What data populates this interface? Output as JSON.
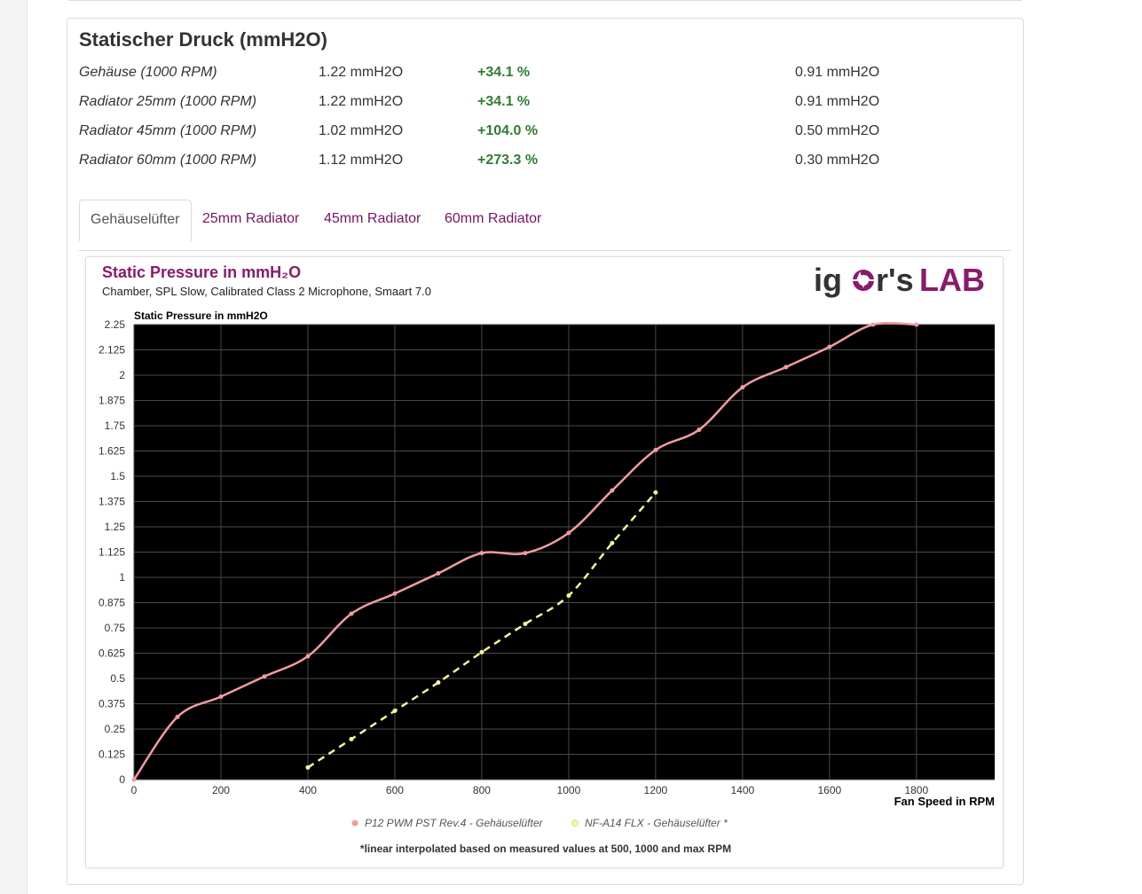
{
  "section": {
    "title": "Statischer Druck (mmH2O)",
    "rows": [
      {
        "label": "Gehäuse (1000 RPM)",
        "value": "1.22 mmH2O",
        "change": "+34.1 %",
        "reference": "0.91 mmH2O"
      },
      {
        "label": "Radiator 25mm (1000 RPM)",
        "value": "1.22 mmH2O",
        "change": "+34.1 %",
        "reference": "0.91 mmH2O"
      },
      {
        "label": "Radiator 45mm (1000 RPM)",
        "value": "1.02 mmH2O",
        "change": "+104.0 %",
        "reference": "0.50 mmH2O"
      },
      {
        "label": "Radiator 60mm (1000 RPM)",
        "value": "1.12 mmH2O",
        "change": "+273.3 %",
        "reference": "0.30 mmH2O"
      }
    ]
  },
  "tabs": [
    {
      "label": "Gehäuselüfter",
      "active": true
    },
    {
      "label": "25mm Radiator",
      "active": false
    },
    {
      "label": "45mm Radiator",
      "active": false
    },
    {
      "label": "60mm Radiator",
      "active": false
    }
  ],
  "chart": {
    "title": "Static Pressure in mmH₂O",
    "subtitle": "Chamber, SPL Slow, Calibrated Class 2 Microphone, Smaart 7.0",
    "logo_text_left": "ig",
    "logo_text_mid": "r's",
    "logo_text_right": "LAB",
    "footnote": "*linear interpolated based on measured values at 500, 1000 and max RPM",
    "colors": {
      "series1": "#f19ca0",
      "series2": "#f5f59a",
      "plot_bg": "#000000",
      "title": "#8b1a6b"
    }
  },
  "chart_data": {
    "type": "line",
    "ylabel": "Static Pressure in mmH2O",
    "xlabel": "Fan Speed in RPM",
    "xlim": [
      0,
      1800
    ],
    "ylim": [
      0,
      2.25
    ],
    "x_ticks": [
      "0",
      "200",
      "400",
      "600",
      "800",
      "1000",
      "1200",
      "1400",
      "1600",
      "1800"
    ],
    "y_ticks": [
      "0",
      "0.125",
      "0.25",
      "0.375",
      "0.5",
      "0.625",
      "0.75",
      "0.875",
      "1",
      "1.125",
      "1.25",
      "1.375",
      "1.5",
      "1.625",
      "1.75",
      "1.875",
      "2",
      "2.125",
      "2.25"
    ],
    "legend_position": "bottom",
    "series": [
      {
        "name": "P12 PWM PST Rev.4 - Gehäuselüfter",
        "style": "solid",
        "x": [
          0,
          100,
          200,
          300,
          400,
          500,
          600,
          700,
          800,
          900,
          1000,
          1100,
          1200,
          1300,
          1400,
          1500,
          1600,
          1700,
          1800
        ],
        "y": [
          0,
          0.31,
          0.41,
          0.51,
          0.61,
          0.82,
          0.92,
          1.02,
          1.12,
          1.12,
          1.22,
          1.43,
          1.63,
          1.73,
          1.94,
          2.04,
          2.14,
          2.25,
          2.25
        ]
      },
      {
        "name": "NF-A14 FLX - Gehäuselüfter *",
        "style": "dashed",
        "x": [
          400,
          500,
          600,
          700,
          800,
          900,
          1000,
          1100,
          1200
        ],
        "y": [
          0.06,
          0.2,
          0.34,
          0.48,
          0.63,
          0.77,
          0.91,
          1.17,
          1.42
        ]
      }
    ]
  }
}
